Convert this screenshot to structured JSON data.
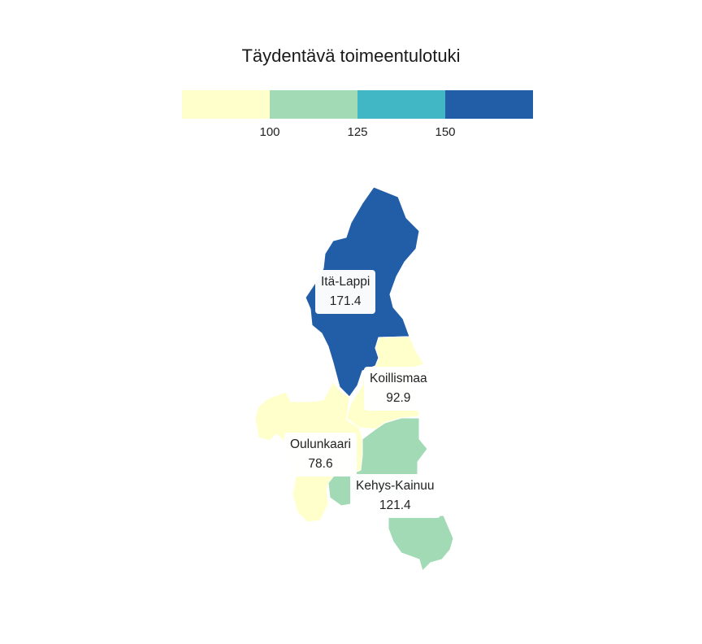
{
  "title": "Täydentävä toimeentulotuki",
  "legend": {
    "bins": [
      {
        "color": "#ffffcc"
      },
      {
        "color": "#a1dab4"
      },
      {
        "color": "#41b6c4"
      },
      {
        "color": "#225ea8"
      }
    ],
    "ticks": [
      "100",
      "125",
      "150"
    ]
  },
  "regions": [
    {
      "name": "Itä-Lappi",
      "value": "171.4",
      "color": "#225ea8"
    },
    {
      "name": "Koillismaa",
      "value": "92.9",
      "color": "#ffffcc"
    },
    {
      "name": "Oulunkaari",
      "value": "78.6",
      "color": "#ffffcc"
    },
    {
      "name": "Kehys-Kainuu",
      "value": "121.4",
      "color": "#a1dab4"
    }
  ]
}
